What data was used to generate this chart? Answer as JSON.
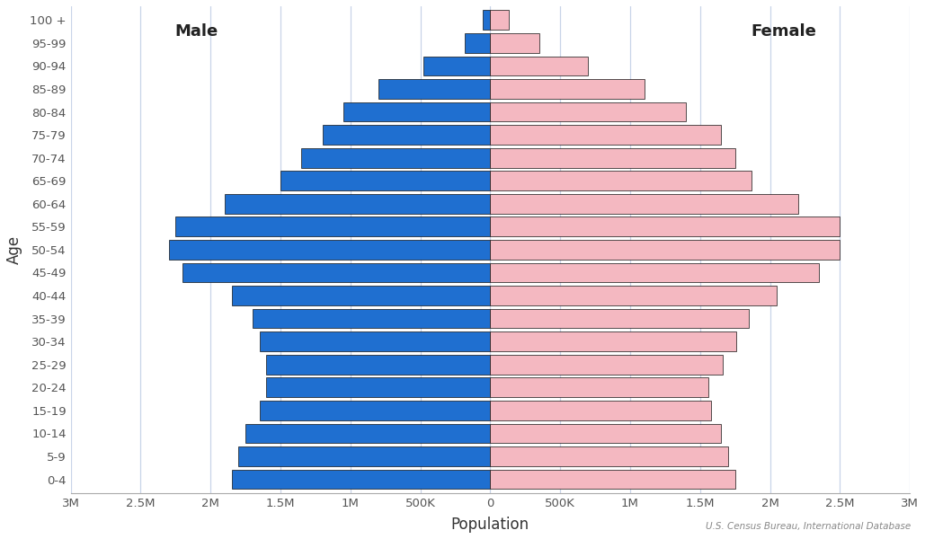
{
  "age_groups": [
    "0-4",
    "5-9",
    "10-14",
    "15-19",
    "20-24",
    "25-29",
    "30-34",
    "35-39",
    "40-44",
    "45-49",
    "50-54",
    "55-59",
    "60-64",
    "65-69",
    "70-74",
    "75-79",
    "80-84",
    "85-89",
    "90-94",
    "95-99",
    "100 +"
  ],
  "male": [
    1850000,
    1800000,
    1750000,
    1650000,
    1600000,
    1600000,
    1650000,
    1700000,
    1850000,
    2200000,
    2300000,
    2250000,
    1900000,
    1500000,
    1350000,
    1200000,
    1050000,
    800000,
    480000,
    185000,
    55000
  ],
  "female": [
    1750000,
    1700000,
    1650000,
    1580000,
    1560000,
    1660000,
    1760000,
    1850000,
    2050000,
    2350000,
    2500000,
    2500000,
    2200000,
    1870000,
    1750000,
    1650000,
    1400000,
    1100000,
    700000,
    350000,
    130000
  ],
  "male_color": "#1f6fd0",
  "female_color": "#f4b8c1",
  "edge_color": "#111111",
  "background_color": "#ffffff",
  "xlabel": "Population",
  "ylabel": "Age",
  "male_label": "Male",
  "female_label": "Female",
  "xlim": 3000000,
  "grid_color": "#c8d4e8",
  "source_text": "U.S. Census Bureau, International Database",
  "tick_values": [
    -3000000,
    -2500000,
    -2000000,
    -1500000,
    -1000000,
    -500000,
    0,
    500000,
    1000000,
    1500000,
    2000000,
    2500000,
    3000000
  ],
  "tick_labels": [
    "3M",
    "2.5M",
    "2M",
    "1.5M",
    "1M",
    "500K",
    "0",
    "500K",
    "1M",
    "1.5M",
    "2M",
    "2.5M",
    "3M"
  ]
}
